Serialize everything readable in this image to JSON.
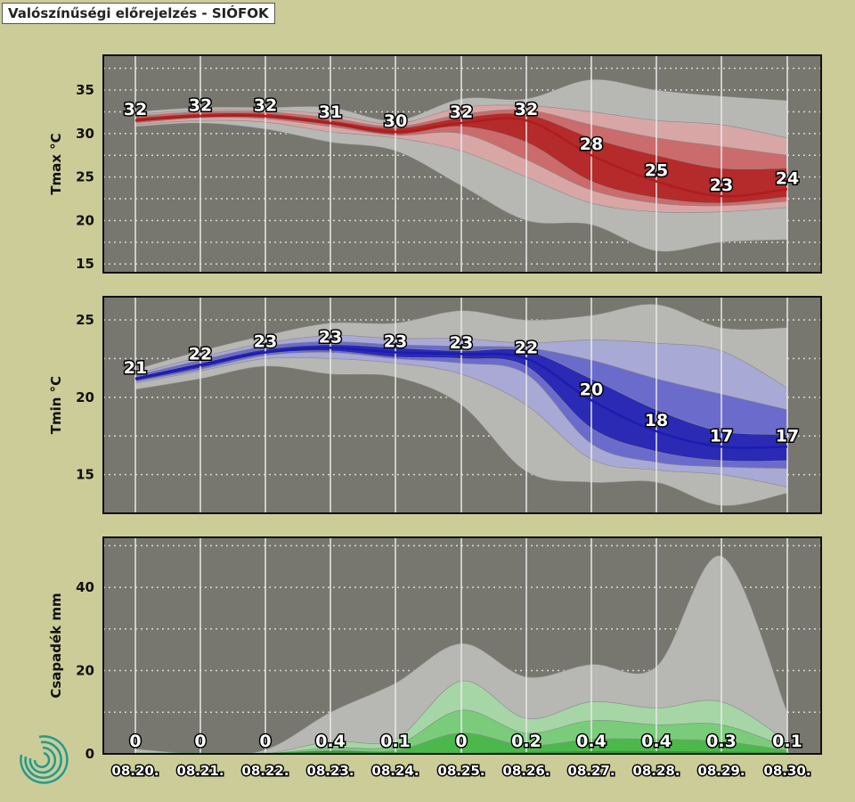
{
  "title": "Valószínűségi előrejelzés - SIÓFOK",
  "colors": {
    "background": "#cccc99",
    "panel": "#777770",
    "tmax": "#b01c1c",
    "tmin": "#1c1cb0",
    "precip": "#4cb84c"
  },
  "logo": "swirl-logo",
  "chart_data": [
    {
      "type": "area",
      "ylabel": "Tmax °C",
      "ylim": [
        14,
        39
      ],
      "yticks": [
        15,
        20,
        25,
        30,
        35
      ],
      "grid": true,
      "x": [
        "08.20.",
        "08.21.",
        "08.22.",
        "08.23.",
        "08.24.",
        "08.25.",
        "08.26.",
        "08.27.",
        "08.28.",
        "08.29.",
        "08.30."
      ],
      "labels": [
        "32",
        "32",
        "32",
        "31",
        "30",
        "32",
        "32",
        "28",
        "25",
        "23",
        "24"
      ],
      "series": [
        {
          "values": [
            31.5,
            32,
            32,
            31.2,
            30.2,
            31.2,
            31.5,
            27.5,
            24.5,
            22.8,
            23.6
          ]
        }
      ],
      "bands": [
        {
          "lower": [
            30.8,
            31.2,
            30.5,
            29,
            28,
            24,
            20,
            19.5,
            16.5,
            17.5,
            17.8
          ],
          "upper": [
            32.5,
            33,
            33,
            33,
            31.5,
            34,
            34,
            36.2,
            35,
            34.3,
            33.8
          ]
        },
        {
          "lower": [
            31,
            31.5,
            31.3,
            30.2,
            29.5,
            28,
            25,
            22,
            21,
            21,
            21.5
          ],
          "upper": [
            32.2,
            32.7,
            32.7,
            32.2,
            31.1,
            33,
            33.2,
            32.5,
            31.5,
            31,
            29.5
          ]
        },
        {
          "lower": [
            31.2,
            31.8,
            31.7,
            30.8,
            29.8,
            30,
            27,
            23.5,
            22,
            21.7,
            22.2
          ],
          "upper": [
            32,
            32.5,
            32.5,
            31.8,
            30.8,
            32.2,
            32.7,
            31,
            29.5,
            28.5,
            27.5
          ]
        },
        {
          "lower": [
            31.3,
            31.9,
            31.8,
            31,
            29.9,
            30.8,
            29,
            24.5,
            22.6,
            22,
            22.7
          ],
          "upper": [
            31.8,
            32.3,
            32.3,
            31.5,
            30.6,
            31.8,
            32.2,
            29.5,
            27.5,
            26,
            26
          ]
        }
      ]
    },
    {
      "type": "area",
      "ylabel": "Tmin °C",
      "ylim": [
        12.5,
        26.5
      ],
      "yticks": [
        15,
        20,
        25
      ],
      "grid": true,
      "x": [
        "08.20.",
        "08.21.",
        "08.22.",
        "08.23.",
        "08.24.",
        "08.25.",
        "08.26.",
        "08.27.",
        "08.28.",
        "08.29.",
        "08.30."
      ],
      "labels": [
        "21",
        "22",
        "23",
        "23",
        "23",
        "23",
        "22",
        "20",
        "18",
        "17",
        "17"
      ],
      "series": [
        {
          "values": [
            21.2,
            22.1,
            22.9,
            23.2,
            22.9,
            22.8,
            22.5,
            19.8,
            17.8,
            16.8,
            16.8
          ]
        }
      ],
      "bands": [
        {
          "lower": [
            20.5,
            21.2,
            22,
            21.5,
            21.3,
            19.5,
            15.2,
            14.5,
            14.5,
            13,
            13.8
          ],
          "upper": [
            21.8,
            23,
            24,
            24.8,
            24.8,
            25.6,
            25,
            25.3,
            26,
            24.5,
            24.5
          ]
        },
        {
          "lower": [
            20.9,
            21.7,
            22.5,
            22.5,
            22.2,
            21.5,
            19.5,
            16,
            15.3,
            15,
            14.2
          ],
          "upper": [
            21.5,
            22.6,
            23.5,
            24,
            23.8,
            23.8,
            23.5,
            23.7,
            23.5,
            23,
            20.6
          ]
        },
        {
          "lower": [
            21,
            21.8,
            22.7,
            22.9,
            22.5,
            22.2,
            21.5,
            17,
            15.8,
            15.5,
            15.4
          ],
          "upper": [
            21.4,
            22.4,
            23.3,
            23.6,
            23.4,
            23.3,
            23.2,
            22.4,
            21.2,
            20.2,
            19.2
          ]
        },
        {
          "lower": [
            21.05,
            21.9,
            22.8,
            23,
            22.6,
            22.5,
            22,
            18,
            16.5,
            15.9,
            15.9
          ],
          "upper": [
            21.3,
            22.2,
            23.1,
            23.4,
            23.2,
            23,
            23,
            21.2,
            19.2,
            17.8,
            17.6
          ]
        }
      ]
    },
    {
      "type": "area",
      "ylabel": "Csapadék mm",
      "ylim": [
        0,
        52
      ],
      "yticks": [
        0,
        20,
        40
      ],
      "grid": true,
      "x": [
        "08.20.",
        "08.21.",
        "08.22.",
        "08.23.",
        "08.24.",
        "08.25.",
        "08.26.",
        "08.27.",
        "08.28.",
        "08.29.",
        "08.30."
      ],
      "labels": [
        "0",
        "0",
        "0",
        "0.4",
        "0.1",
        "0",
        "0.2",
        "0.4",
        "0.4",
        "0.3",
        "0.1"
      ],
      "series": [
        {
          "values": [
            0,
            0,
            0,
            0.4,
            0.1,
            0,
            0.2,
            0.4,
            0.4,
            0.3,
            0.1
          ]
        }
      ],
      "bands": [
        {
          "lower": [
            0,
            0,
            0,
            0,
            0,
            0,
            0,
            0,
            0,
            0,
            0
          ],
          "upper": [
            1.2,
            0,
            1,
            10,
            17,
            26.5,
            18.5,
            21.5,
            21,
            47.5,
            10
          ]
        },
        {
          "lower": [
            0,
            0,
            0,
            0,
            0,
            0,
            0,
            0,
            0,
            0,
            0
          ],
          "upper": [
            0,
            0,
            0,
            3,
            3.5,
            17.5,
            8.5,
            12.5,
            11,
            12.5,
            3
          ]
        },
        {
          "lower": [
            0,
            0,
            0,
            0,
            0,
            0,
            0,
            0,
            0,
            0,
            0
          ],
          "upper": [
            0,
            0,
            0,
            1.5,
            2,
            10.5,
            5,
            8,
            7,
            7,
            1.5
          ]
        },
        {
          "lower": [
            0,
            0,
            0,
            0,
            0,
            0,
            0,
            0,
            0,
            0,
            0
          ],
          "upper": [
            0,
            0,
            0,
            0.8,
            0.8,
            5,
            2,
            3.5,
            3.5,
            3,
            0.8
          ]
        }
      ]
    }
  ]
}
